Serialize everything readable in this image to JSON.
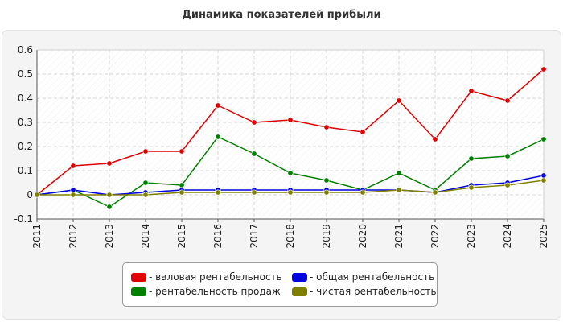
{
  "chart_data": {
    "type": "line",
    "title": "Динамика показателей прибыли",
    "xlabel": "",
    "ylabel": "",
    "x": [
      "2011",
      "2012",
      "2013",
      "2014",
      "2015",
      "2016",
      "2017",
      "2018",
      "2019",
      "2020",
      "2021",
      "2022",
      "2023",
      "2024",
      "2025"
    ],
    "ylim": [
      -0.1,
      0.6
    ],
    "yticks": [
      "-0.1",
      "0",
      "0.1",
      "0.2",
      "0.3",
      "0.4",
      "0.5",
      "0.6"
    ],
    "grid": true,
    "legend_position": "bottom",
    "series": [
      {
        "name": "- валовая рентабельность",
        "color": "#e00000",
        "values": [
          0.0,
          0.12,
          0.13,
          0.18,
          0.18,
          0.37,
          0.3,
          0.31,
          0.28,
          0.26,
          0.39,
          0.23,
          0.43,
          0.39,
          0.52
        ]
      },
      {
        "name": "- общая рентабельность",
        "color": "#0000e0",
        "values": [
          0.0,
          0.02,
          0.0,
          0.01,
          0.02,
          0.02,
          0.02,
          0.02,
          0.02,
          0.02,
          0.02,
          0.01,
          0.04,
          0.05,
          0.08
        ]
      },
      {
        "name": "- рентабельность продаж",
        "color": "#008000",
        "values": [
          0.0,
          0.02,
          -0.05,
          0.05,
          0.04,
          0.24,
          0.17,
          0.09,
          0.06,
          0.02,
          0.09,
          0.02,
          0.15,
          0.16,
          0.23
        ]
      },
      {
        "name": "- чистая рентабельность",
        "color": "#808000",
        "values": [
          0.0,
          0.0,
          0.0,
          0.0,
          0.01,
          0.01,
          0.01,
          0.01,
          0.01,
          0.01,
          0.02,
          0.01,
          0.03,
          0.04,
          0.06
        ]
      }
    ]
  }
}
